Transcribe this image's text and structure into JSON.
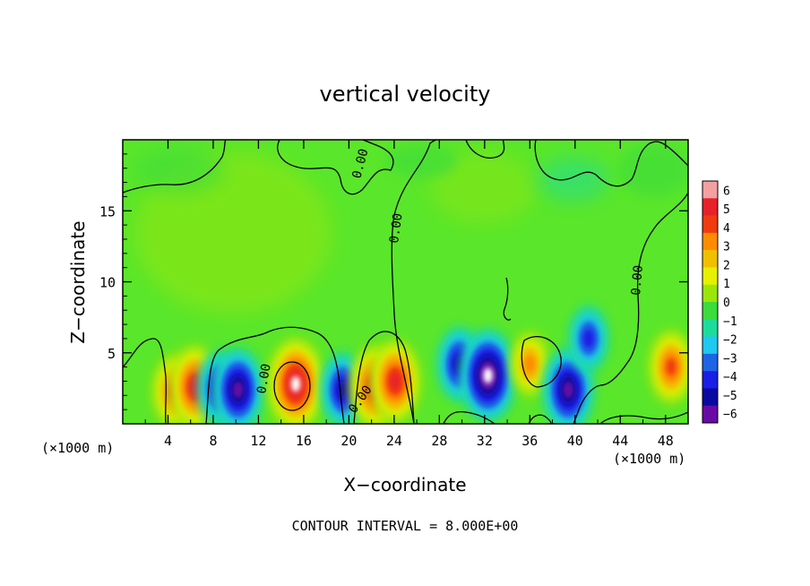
{
  "chart_data": {
    "type": "heatmap",
    "title": "vertical velocity",
    "xlabel": "X−coordinate",
    "ylabel": "Z−coordinate",
    "x_unit_label_left": "(×1000 m)",
    "x_unit_label_right": "(×1000 m)",
    "footer": "CONTOUR INTERVAL = 8.000E+00",
    "xlim": [
      0,
      50
    ],
    "ylim": [
      0,
      20
    ],
    "x_ticks": [
      "4",
      "8",
      "12",
      "16",
      "20",
      "24",
      "28",
      "32",
      "36",
      "40",
      "44",
      "48"
    ],
    "y_ticks": [
      "5",
      "10",
      "15"
    ],
    "colorbar": {
      "levels": [
        "6",
        "5",
        "4",
        "3",
        "2",
        "1",
        "0",
        "−1",
        "−2",
        "−3",
        "−4",
        "−5",
        "−6"
      ],
      "colors": [
        "#f4a0a0",
        "#e8202a",
        "#f03a10",
        "#ff8c00",
        "#f0c000",
        "#e6f000",
        "#9ae60a",
        "#3cdc3c",
        "#1cdc9c",
        "#1ec8f0",
        "#1e64e6",
        "#1a1ee6",
        "#0a0aa0",
        "#6a0aa6"
      ]
    },
    "contour_labels": [
      "0.00",
      "0.00",
      "0.00",
      "0.00",
      "0.00"
    ],
    "features": [
      {
        "kind": "updraft",
        "x": 4.6,
        "z": 2.3,
        "level": 4
      },
      {
        "kind": "updraft",
        "x": 6.4,
        "z": 2.6,
        "level": 5
      },
      {
        "kind": "downdraft",
        "x": 8.6,
        "z": 2.5,
        "level": -4
      },
      {
        "kind": "downdraft",
        "x": 10.2,
        "z": 2.4,
        "level": -5
      },
      {
        "kind": "updraft",
        "x": 15.3,
        "z": 2.8,
        "level": 6
      },
      {
        "kind": "downdraft",
        "x": 19.5,
        "z": 2.4,
        "level": -4
      },
      {
        "kind": "updraft",
        "x": 22.3,
        "z": 2.6,
        "level": 5
      },
      {
        "kind": "updraft",
        "x": 24.1,
        "z": 3.0,
        "level": 5
      },
      {
        "kind": "downdraft",
        "x": 29.8,
        "z": 4.2,
        "level": -4
      },
      {
        "kind": "downdraft",
        "x": 32.3,
        "z": 3.4,
        "level": -6
      },
      {
        "kind": "updraft",
        "x": 36.0,
        "z": 4.2,
        "level": 3
      },
      {
        "kind": "downdraft",
        "x": 39.4,
        "z": 2.4,
        "level": -5
      },
      {
        "kind": "downdraft",
        "x": 41.2,
        "z": 6.0,
        "level": -3
      },
      {
        "kind": "updraft",
        "x": 48.5,
        "z": 4.0,
        "level": 4
      }
    ],
    "grid": false
  }
}
